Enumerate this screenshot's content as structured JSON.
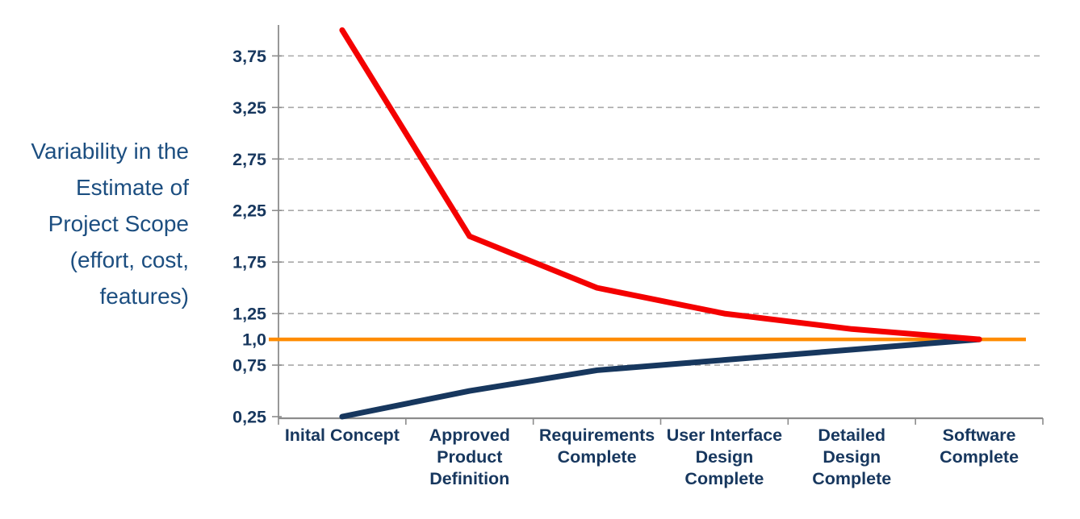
{
  "page": {
    "background_color": "#FFFFFF"
  },
  "chart_data": {
    "type": "line",
    "title": "",
    "y_axis_title": "Variability in the Estimate of Project Scope (effort, cost, features)",
    "y_axis_title_lines": [
      "Variability in the",
      "Estimate of",
      "Project Scope",
      "(effort, cost,",
      "features)"
    ],
    "categories": [
      "Inital Concept",
      "Approved Product Definition",
      "Requirements Complete",
      "User Interface Design Complete",
      "Detailed Design Complete",
      "Software Complete"
    ],
    "category_label_lines": [
      [
        "Inital Concept"
      ],
      [
        "Approved",
        "Product",
        "Definition"
      ],
      [
        "Requirements",
        "Complete"
      ],
      [
        "User Interface",
        "Design",
        "Complete"
      ],
      [
        "Detailed",
        "Design",
        "Complete"
      ],
      [
        "Software",
        "Complete"
      ]
    ],
    "series": [
      {
        "name": "estimate-upper-bound",
        "color": "#F40000",
        "stroke_width": 7,
        "values": [
          4.0,
          2.0,
          1.5,
          1.25,
          1.1,
          1.0
        ]
      },
      {
        "name": "estimate-lower-bound",
        "color": "#17375E",
        "stroke_width": 7,
        "values": [
          0.25,
          0.5,
          0.7,
          0.8,
          0.9,
          1.0
        ]
      }
    ],
    "reference_line": {
      "name": "actual-scope-baseline",
      "value": 1.0,
      "color": "#FF8C00",
      "stroke_width": 4.5
    },
    "yticks": [
      {
        "value": 0.25,
        "label": "0,25"
      },
      {
        "value": 0.75,
        "label": "0,75"
      },
      {
        "value": 1.0,
        "label": "1,0"
      },
      {
        "value": 1.25,
        "label": "1,25"
      },
      {
        "value": 1.75,
        "label": "1,75"
      },
      {
        "value": 2.25,
        "label": "2,25"
      },
      {
        "value": 2.75,
        "label": "2,75"
      },
      {
        "value": 3.25,
        "label": "3,25"
      },
      {
        "value": 3.75,
        "label": "3,75"
      }
    ],
    "gridline_values": [
      0.75,
      1.25,
      1.75,
      2.25,
      2.75,
      3.25,
      3.75
    ],
    "ylim": [
      0.25,
      4.05
    ],
    "grid": "dashed-horizontal",
    "legend": "none",
    "colors": {
      "axis": "#8C8C8C",
      "gridline": "#A9A9A9",
      "tick_text": "#17375E",
      "axis_title_text": "#1C4E80"
    }
  }
}
